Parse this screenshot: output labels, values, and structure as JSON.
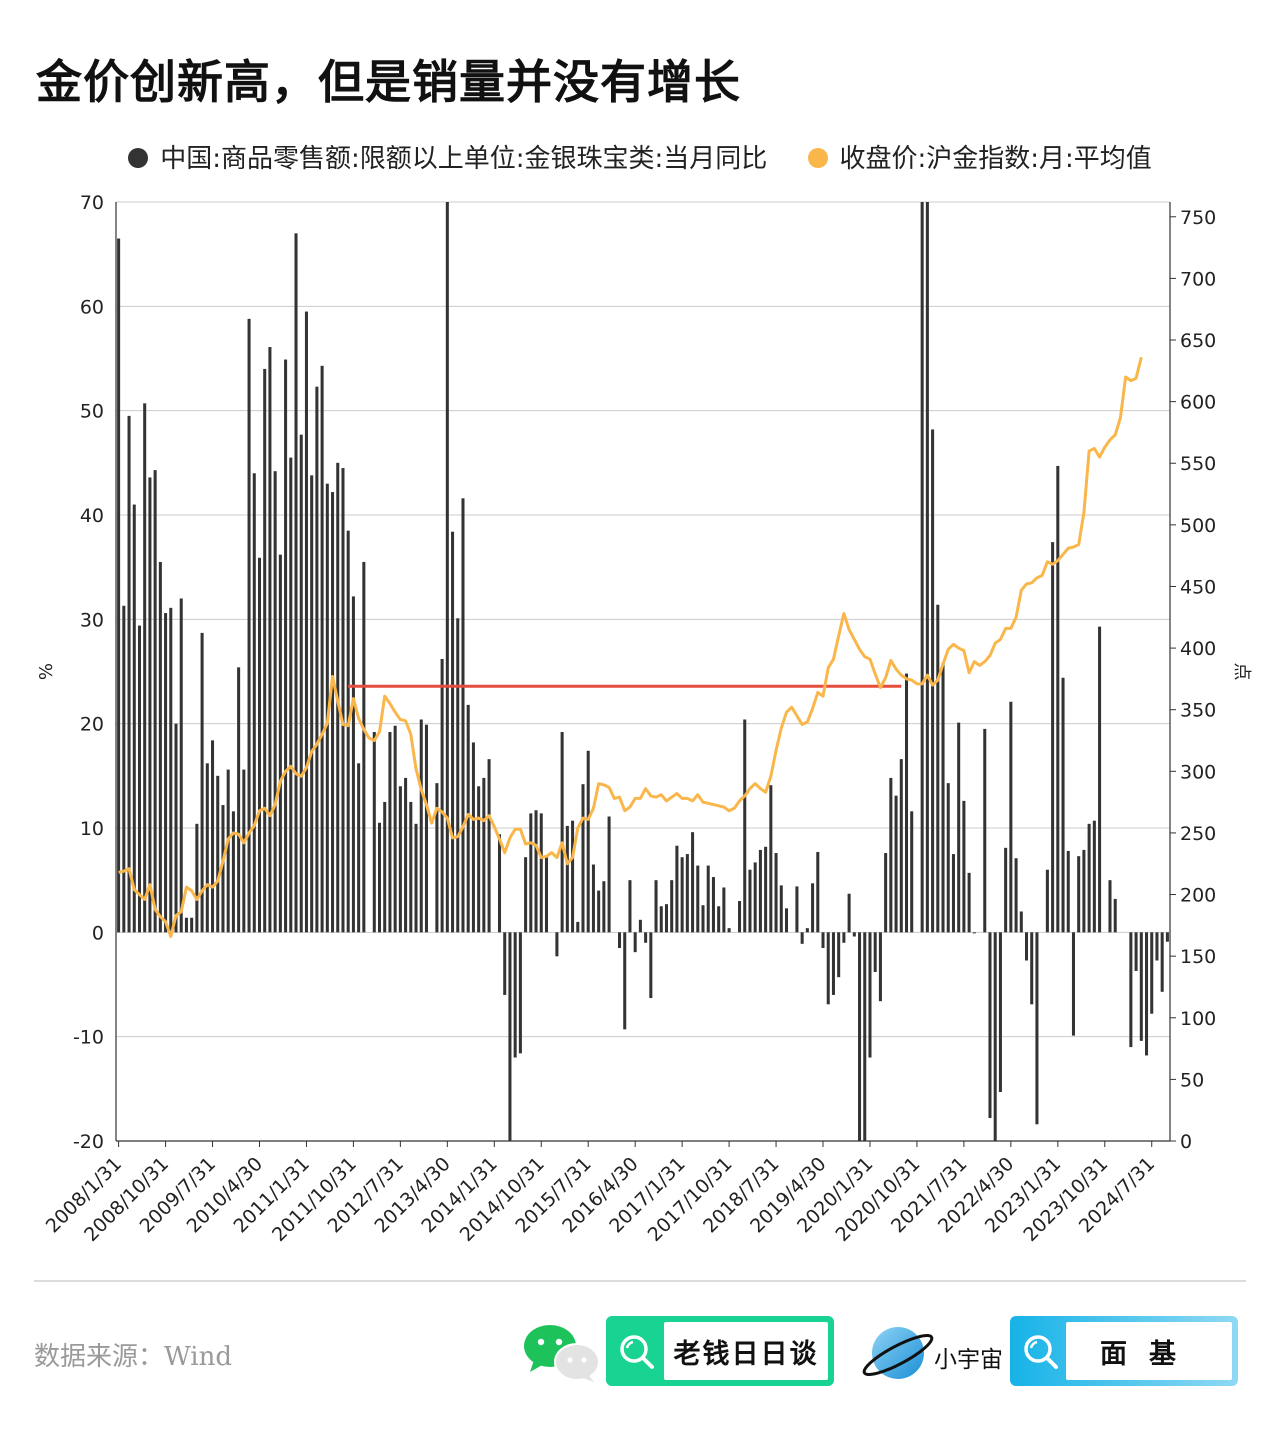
{
  "title": "金价创新高，但是销量并没有增长",
  "colors": {
    "bar": "#333333",
    "line": "#f9b64a",
    "ref": "#e84c3d",
    "grid": "#cccccc"
  },
  "legend": [
    {
      "label": "中国:商品零售额:限额以上单位:金银珠宝类:当月同比",
      "color": "#333333"
    },
    {
      "label": "收盘价:沪金指数:月:平均值",
      "color": "#f9b64a"
    }
  ],
  "footer": {
    "source": "数据来源：Wind",
    "brand_left": "老钱日日谈",
    "brand_right_label": "小宇宙",
    "brand_right_box": "面基",
    "icons": [
      "wechat-icon",
      "search-icon",
      "planet-icon",
      "search-icon"
    ]
  },
  "chart_data": {
    "type": "bar",
    "x_labels": [
      "2008/1/31",
      "2008/10/31",
      "2009/7/31",
      "2010/4/30",
      "2011/1/31",
      "2011/10/31",
      "2012/7/31",
      "2013/4/30",
      "2014/1/31",
      "2014/10/31",
      "2015/7/31",
      "2016/4/30",
      "2017/1/31",
      "2017/10/31",
      "2018/7/31",
      "2019/4/30",
      "2020/1/31",
      "2020/10/31",
      "2021/7/31",
      "2022/4/30",
      "2023/1/31",
      "2023/10/31",
      "2024/7/31"
    ],
    "y_left": {
      "label": "%",
      "min": -20,
      "max": 70,
      "ticks": [
        -20,
        -10,
        0,
        10,
        20,
        30,
        40,
        50,
        60,
        70
      ]
    },
    "y_right": {
      "label": "点",
      "min": 0,
      "max": 762,
      "ticks": [
        0,
        50,
        100,
        150,
        200,
        250,
        300,
        350,
        400,
        450,
        500,
        550,
        600,
        650,
        700,
        750
      ]
    },
    "grid": true,
    "legend_position": "top",
    "series": [
      {
        "name": "中国:商品零售额:限额以上单位:金银珠宝类:当月同比",
        "type": "bar",
        "axis": "left",
        "values": [
          66.5,
          31.3,
          49.5,
          41.0,
          29.4,
          50.7,
          43.6,
          44.3,
          35.5,
          30.6,
          31.1,
          20.0,
          32.0,
          1.4,
          1.4,
          10.4,
          28.7,
          16.2,
          18.4,
          15.0,
          12.2,
          15.6,
          11.6,
          25.4,
          15.6,
          58.8,
          44.0,
          35.9,
          54.0,
          56.1,
          44.2,
          36.2,
          54.9,
          45.5,
          67.0,
          47.7,
          59.5,
          43.8,
          52.3,
          54.3,
          43.0,
          42.2,
          45.0,
          44.5,
          38.5,
          32.2,
          16.2,
          35.5,
          null,
          19.2,
          10.5,
          12.5,
          19.2,
          19.8,
          14.0,
          14.8,
          12.5,
          10.4,
          20.4,
          19.9,
          null,
          14.3,
          26.2,
          72.0,
          38.4,
          30.1,
          41.6,
          21.8,
          18.2,
          14.0,
          14.8,
          16.6,
          null,
          9.4,
          -6.0,
          -20.0,
          -12.0,
          -11.6,
          7.2,
          11.4,
          11.7,
          11.4,
          7.2,
          null,
          -2.3,
          19.2,
          10.2,
          10.7,
          1.0,
          14.2,
          17.4,
          6.5,
          4.0,
          4.9,
          11.1,
          null,
          -1.5,
          -9.3,
          5.0,
          -1.9,
          1.2,
          -1.0,
          -6.3,
          5.0,
          2.5,
          2.7,
          5.0,
          8.3,
          7.2,
          7.5,
          9.6,
          6.4,
          2.6,
          6.4,
          5.3,
          2.5,
          4.3,
          0.4,
          null,
          3.0,
          20.4,
          6.0,
          6.7,
          7.9,
          8.2,
          14.1,
          7.6,
          4.5,
          2.3,
          null,
          4.4,
          -1.1,
          0.4,
          4.7,
          7.7,
          -1.5,
          -6.9,
          -6.0,
          -4.3,
          -1.0,
          3.7,
          -0.4,
          -20.0,
          -20.0,
          -12.0,
          -3.8,
          -6.6,
          7.6,
          14.8,
          13.1,
          16.6,
          24.8,
          11.6,
          null,
          72.0,
          72.0,
          48.2,
          31.4,
          25.8,
          14.3,
          7.5,
          20.1,
          12.6,
          5.7,
          -0.1,
          null,
          19.5,
          -17.8,
          -20.0,
          -15.3,
          8.1,
          22.1,
          7.1,
          2.0,
          -2.7,
          -6.9,
          -18.4,
          null,
          6.0,
          37.4,
          44.7,
          24.4,
          7.8,
          -9.9,
          7.3,
          7.9,
          10.4,
          10.7,
          29.3,
          null,
          5.0,
          3.2,
          null,
          null,
          -11.0,
          -3.7,
          -10.4,
          -11.8,
          -7.8,
          -2.7,
          -5.7,
          -0.9
        ]
      },
      {
        "name": "收盘价:沪金指数:月:平均值",
        "type": "line",
        "axis": "right",
        "values": [
          218,
          219,
          221,
          204,
          200,
          196,
          208,
          188,
          182,
          178,
          166,
          183,
          186,
          206,
          203,
          196,
          203,
          208,
          206,
          211,
          227,
          245,
          250,
          249,
          242,
          250,
          256,
          268,
          270,
          264,
          273,
          292,
          300,
          304,
          298,
          296,
          303,
          316,
          322,
          330,
          339,
          377,
          357,
          338,
          337,
          359,
          343,
          334,
          327,
          325,
          332,
          361,
          355,
          348,
          342,
          341,
          330,
          302,
          285,
          273,
          258,
          270,
          267,
          262,
          246,
          247,
          255,
          265,
          261,
          262,
          260,
          264,
          255,
          245,
          234,
          246,
          253,
          253,
          241,
          242,
          240,
          230,
          231,
          234,
          230,
          242,
          225,
          230,
          254,
          262,
          261,
          270,
          290,
          289,
          287,
          278,
          279,
          268,
          271,
          278,
          278,
          286,
          280,
          279,
          281,
          276,
          279,
          282,
          278,
          278,
          276,
          281,
          275,
          274,
          273,
          272,
          271,
          268,
          270,
          276,
          280,
          286,
          290,
          286,
          283,
          296,
          317,
          335,
          348,
          352,
          345,
          338,
          340,
          351,
          364,
          361,
          384,
          391,
          410,
          428,
          415,
          407,
          399,
          393,
          391,
          379,
          368,
          376,
          390,
          383,
          378,
          375,
          374,
          371,
          371,
          378,
          370,
          374,
          387,
          399,
          403,
          400,
          398,
          380,
          389,
          386,
          389,
          394,
          404,
          407,
          416,
          416,
          425,
          447,
          452,
          453,
          457,
          459,
          470,
          468,
          471,
          476,
          481,
          482,
          484,
          510,
          560,
          562,
          555,
          563,
          569,
          573,
          587,
          620,
          617,
          619,
          636
        ]
      },
      {
        "name": "",
        "type": "reference-line",
        "axis": "right",
        "value": 369,
        "x_start": "2011/9/30",
        "x_end": "2020/7/31"
      }
    ]
  }
}
